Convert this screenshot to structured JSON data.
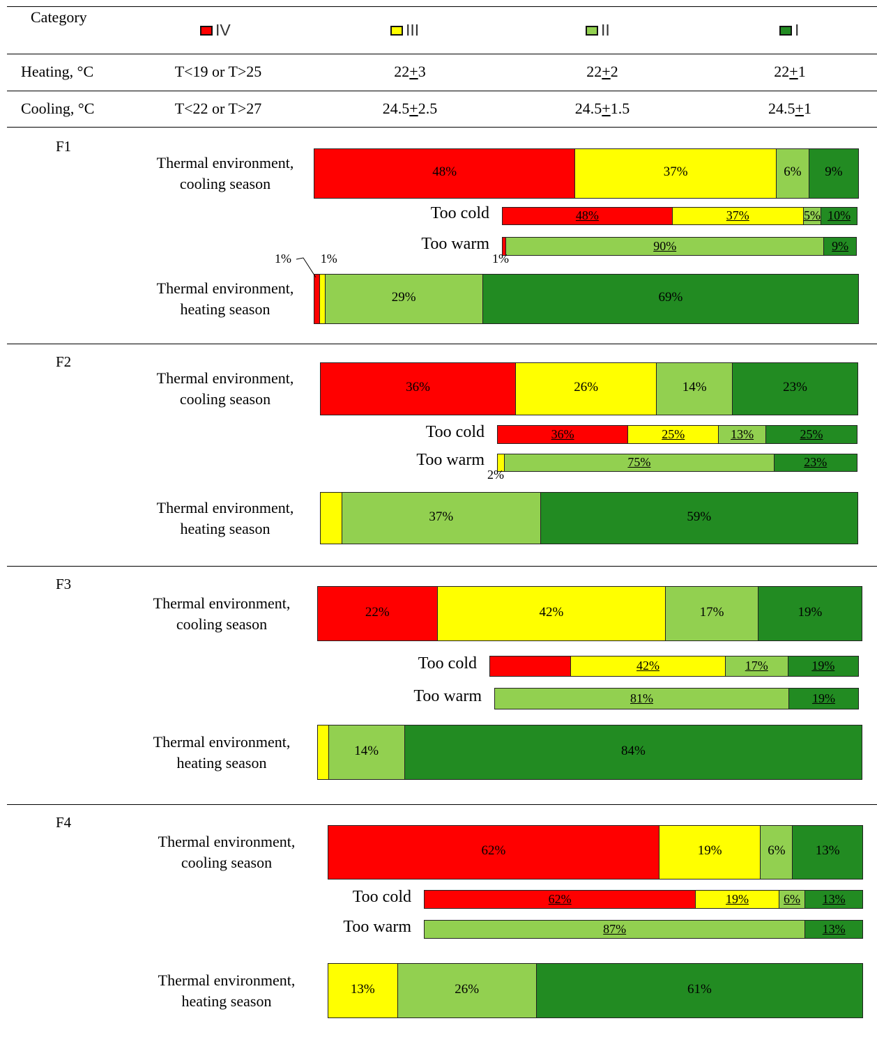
{
  "colors": {
    "IV": "#ff0000",
    "III": "#ffff00",
    "II": "#92d050",
    "I": "#228b22"
  },
  "header": {
    "category_label": "Category",
    "legend": [
      {
        "key": "IV",
        "label": "IV"
      },
      {
        "key": "III",
        "label": "III"
      },
      {
        "key": "II",
        "label": "II"
      },
      {
        "key": "I",
        "label": "I"
      }
    ],
    "heating": {
      "label": "Heating, °C",
      "values": [
        "T<19 or T>25",
        "22+3",
        "22+2",
        "22+1"
      ]
    },
    "cooling": {
      "label": "Cooling, °C",
      "values": [
        "T<22 or T>27",
        "24.5+2.5",
        "24.5+1.5",
        "24.5+1"
      ]
    }
  },
  "chart_data": [
    {
      "type": "bar",
      "panel": "F1",
      "categories": [
        "IV",
        "III",
        "II",
        "I"
      ],
      "bars": [
        {
          "label": "Thermal environment,\ncooling season",
          "values": [
            48,
            37,
            6,
            9
          ],
          "labels": [
            "48%",
            "37%",
            "6%",
            "9%"
          ]
        },
        {
          "label": "Too cold",
          "values": [
            48,
            37,
            5,
            10
          ],
          "labels": [
            "48%",
            "37%",
            "5%",
            "10%"
          ]
        },
        {
          "label": "Too warm",
          "values": [
            1,
            0,
            90,
            9
          ],
          "labels": [
            "1%",
            "",
            "90%",
            "9%"
          ]
        },
        {
          "label": "Thermal environment,\nheating season",
          "values": [
            1,
            1,
            29,
            69
          ],
          "labels": [
            "1%",
            "1%",
            "29%",
            "69%"
          ]
        }
      ]
    },
    {
      "type": "bar",
      "panel": "F2",
      "categories": [
        "IV",
        "III",
        "II",
        "I"
      ],
      "bars": [
        {
          "label": "Thermal environment,\ncooling season",
          "values": [
            36,
            26,
            14,
            23
          ],
          "labels": [
            "36%",
            "26%",
            "14%",
            "23%"
          ]
        },
        {
          "label": "Too cold",
          "values": [
            36,
            25,
            13,
            25
          ],
          "labels": [
            "36%",
            "25%",
            "13%",
            "25%"
          ]
        },
        {
          "label": "Too warm",
          "values": [
            0,
            2,
            75,
            23
          ],
          "labels": [
            "",
            "2%",
            "75%",
            "23%"
          ]
        },
        {
          "label": "Thermal environment,\nheating season",
          "values": [
            0,
            4,
            37,
            59
          ],
          "labels": [
            "",
            "",
            "37%",
            "59%"
          ]
        }
      ]
    },
    {
      "type": "bar",
      "panel": "F3",
      "categories": [
        "IV",
        "III",
        "II",
        "I"
      ],
      "bars": [
        {
          "label": "Thermal environment,\ncooling season",
          "values": [
            22,
            42,
            17,
            19
          ],
          "labels": [
            "22%",
            "42%",
            "17%",
            "19%"
          ]
        },
        {
          "label": "Too cold",
          "values": [
            22,
            42,
            17,
            19
          ],
          "labels": [
            "",
            "42%",
            "17%",
            "19%"
          ]
        },
        {
          "label": "Too warm",
          "values": [
            0,
            0,
            81,
            19
          ],
          "labels": [
            "",
            "",
            "81%",
            "19%"
          ]
        },
        {
          "label": "Thermal environment,\nheating season",
          "values": [
            0,
            2,
            14,
            84
          ],
          "labels": [
            "",
            "",
            "14%",
            "84%"
          ]
        }
      ]
    },
    {
      "type": "bar",
      "panel": "F4",
      "categories": [
        "IV",
        "III",
        "II",
        "I"
      ],
      "bars": [
        {
          "label": "Thermal environment,\ncooling season",
          "values": [
            62,
            19,
            6,
            13
          ],
          "labels": [
            "62%",
            "19%",
            "6%",
            "13%"
          ]
        },
        {
          "label": "Too cold",
          "values": [
            62,
            19,
            6,
            13
          ],
          "labels": [
            "62%",
            "19%",
            "6%",
            "13%"
          ]
        },
        {
          "label": "Too warm",
          "values": [
            0,
            0,
            87,
            13
          ],
          "labels": [
            "",
            "",
            "87%",
            "13%"
          ]
        },
        {
          "label": "Thermal environment,\nheating season",
          "values": [
            0,
            13,
            26,
            61
          ],
          "labels": [
            "",
            "13%",
            "26%",
            "61%"
          ]
        }
      ]
    }
  ]
}
